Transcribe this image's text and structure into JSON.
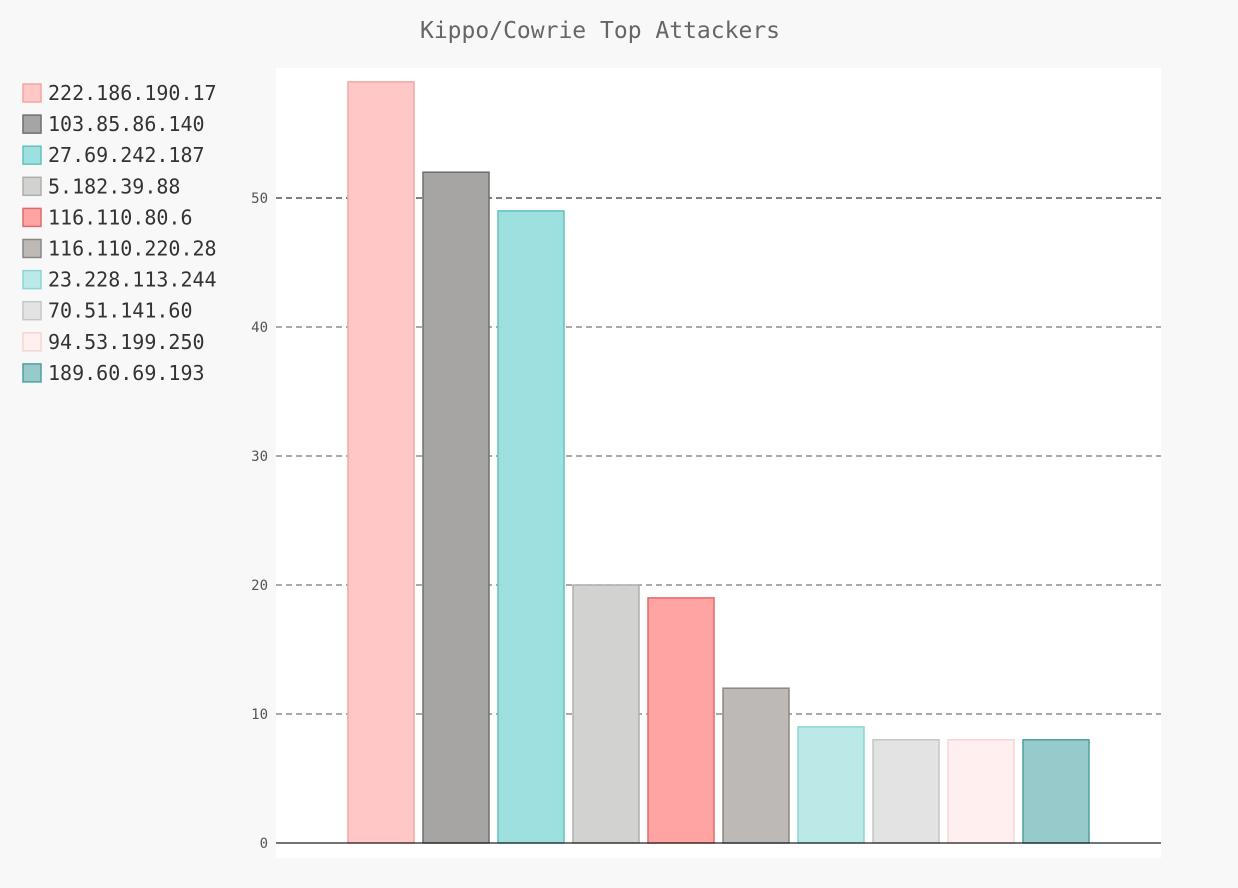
{
  "chart_data": {
    "type": "bar",
    "title": "Kippo/Cowrie Top Attackers",
    "xlabel": "",
    "ylabel": "",
    "ylim": [
      0,
      60
    ],
    "yticks": [
      0,
      10,
      20,
      30,
      40,
      50
    ],
    "grid": true,
    "legend": "left",
    "series": [
      {
        "name": "222.186.190.17",
        "value": 59,
        "fill": "#ffc7c6",
        "stroke": "#f4a5a4"
      },
      {
        "name": "103.85.86.140",
        "value": 52,
        "fill": "#a6a5a3",
        "stroke": "#6f6e6c"
      },
      {
        "name": "27.69.242.187",
        "value": 49,
        "fill": "#9de0df",
        "stroke": "#62c2c0"
      },
      {
        "name": "5.182.39.88",
        "value": 20,
        "fill": "#d2d3d1",
        "stroke": "#aeb0ad"
      },
      {
        "name": "116.110.80.6",
        "value": 19,
        "fill": "#ffa4a3",
        "stroke": "#e06b6a"
      },
      {
        "name": "116.110.220.28",
        "value": 12,
        "fill": "#bcb9b6",
        "stroke": "#8a8683"
      },
      {
        "name": "23.228.113.244",
        "value": 9,
        "fill": "#bbe9e8",
        "stroke": "#8dd5d3"
      },
      {
        "name": "70.51.141.60",
        "value": 8,
        "fill": "#e3e3e3",
        "stroke": "#c6c6c6"
      },
      {
        "name": "94.53.199.250",
        "value": 8,
        "fill": "#ffefee",
        "stroke": "#f6d5d4"
      },
      {
        "name": "189.60.69.193",
        "value": 8,
        "fill": "#97cbcb",
        "stroke": "#4f9f9f"
      }
    ]
  }
}
